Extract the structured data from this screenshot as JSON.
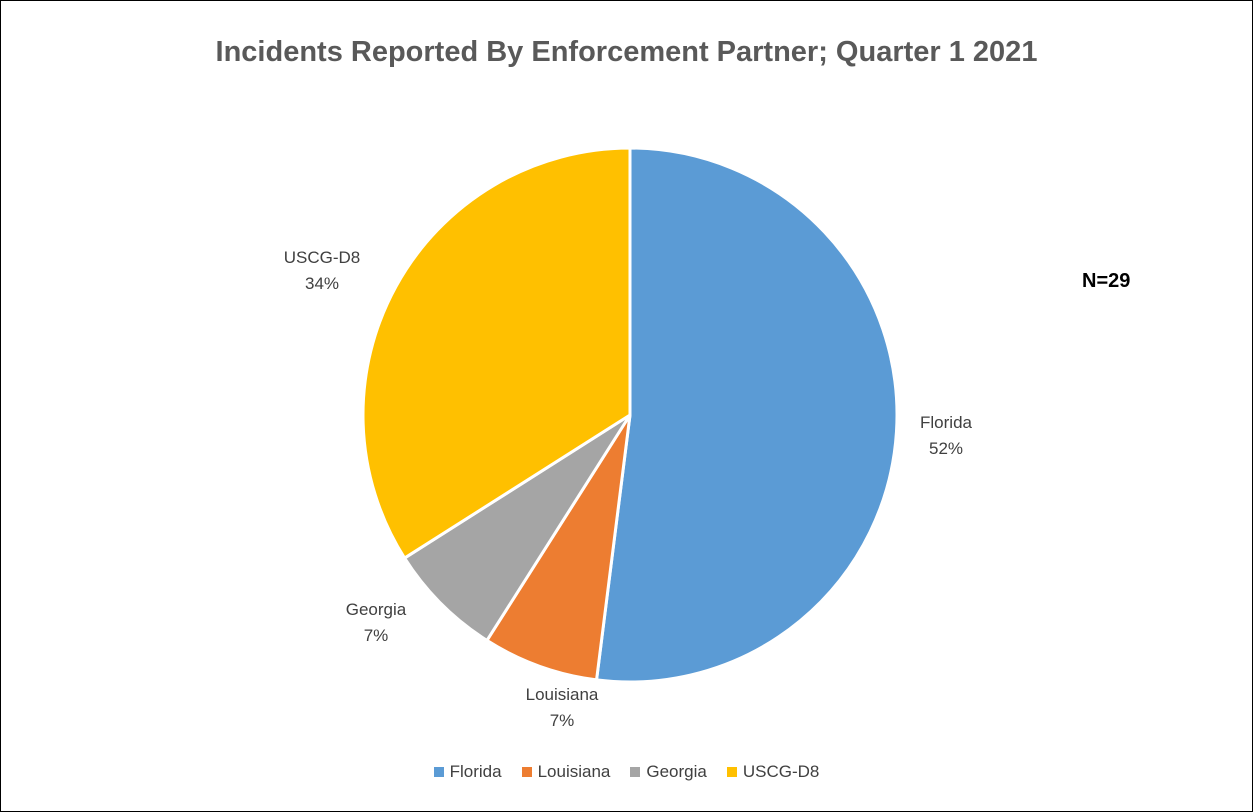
{
  "chart_data": {
    "type": "pie",
    "title": "Incidents Reported By Enforcement Partner; Quarter 1 2021",
    "annotation": "N=29",
    "slices": [
      {
        "label": "Florida",
        "value": 52,
        "percent_label": "52%",
        "color": "#5B9BD5"
      },
      {
        "label": "Louisiana",
        "value": 7,
        "percent_label": "7%",
        "color": "#ED7D31"
      },
      {
        "label": "Georgia",
        "value": 7,
        "percent_label": "7%",
        "color": "#A5A5A5"
      },
      {
        "label": "USCG-D8",
        "value": 34,
        "percent_label": "34%",
        "color": "#FFC000"
      }
    ],
    "legend_position": "bottom"
  }
}
